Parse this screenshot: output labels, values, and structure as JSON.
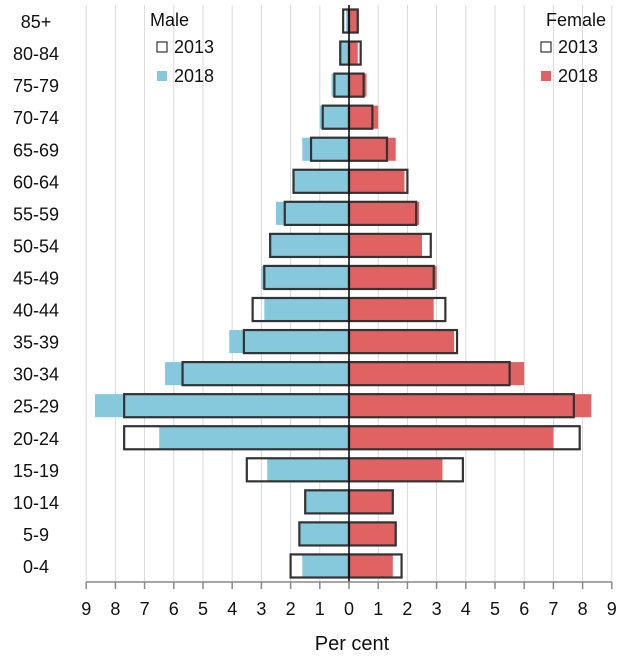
{
  "chart_data": {
    "type": "bar",
    "subtype": "population-pyramid",
    "xlabel": "Per cent",
    "xlim": [
      -9,
      9
    ],
    "x_tick_labels": [
      "9",
      "8",
      "7",
      "6",
      "5",
      "4",
      "3",
      "2",
      "1",
      "0",
      "1",
      "2",
      "3",
      "4",
      "5",
      "6",
      "7",
      "8",
      "9"
    ],
    "grid": "vertical",
    "categories": [
      "85+",
      "80-84",
      "75-79",
      "70-74",
      "65-69",
      "60-64",
      "55-59",
      "50-54",
      "45-49",
      "40-44",
      "35-39",
      "30-34",
      "25-29",
      "20-24",
      "15-19",
      "10-14",
      "5-9",
      "0-4"
    ],
    "legend_male": {
      "title": "Male",
      "placement": "top-left",
      "items": [
        {
          "label": "2013",
          "style": "outline"
        },
        {
          "label": "2018",
          "style": "filled"
        }
      ]
    },
    "legend_female": {
      "title": "Female",
      "placement": "top-right",
      "items": [
        {
          "label": "2013",
          "style": "outline"
        },
        {
          "label": "2018",
          "style": "filled"
        }
      ]
    },
    "colors": {
      "male_2018": "#86c9dd",
      "female_2018": "#e06262",
      "outline_2013": "#333333",
      "grid": "#d9d9d9",
      "axis": "#888888"
    },
    "series": [
      {
        "name": "Male 2018",
        "side": "male",
        "year": "2018",
        "values": [
          0.1,
          0.3,
          0.6,
          1.0,
          1.6,
          1.9,
          2.5,
          2.7,
          3.0,
          2.9,
          4.1,
          6.3,
          8.7,
          6.5,
          2.8,
          1.5,
          1.7,
          1.6
        ]
      },
      {
        "name": "Male 2013",
        "side": "male",
        "year": "2013",
        "values": [
          0.2,
          0.3,
          0.5,
          0.9,
          1.3,
          1.9,
          2.2,
          2.7,
          2.9,
          3.3,
          3.6,
          5.7,
          7.7,
          7.7,
          3.5,
          1.5,
          1.7,
          2.0
        ]
      },
      {
        "name": "Female 2018",
        "side": "female",
        "year": "2018",
        "values": [
          0.3,
          0.3,
          0.6,
          1.0,
          1.6,
          1.9,
          2.4,
          2.5,
          3.0,
          2.9,
          3.6,
          6.0,
          8.3,
          7.0,
          3.2,
          1.5,
          1.6,
          1.5
        ]
      },
      {
        "name": "Female 2013",
        "side": "female",
        "year": "2013",
        "values": [
          0.3,
          0.4,
          0.5,
          0.8,
          1.3,
          2.0,
          2.3,
          2.8,
          2.9,
          3.3,
          3.7,
          5.5,
          7.7,
          7.9,
          3.9,
          1.5,
          1.6,
          1.8
        ]
      }
    ]
  }
}
